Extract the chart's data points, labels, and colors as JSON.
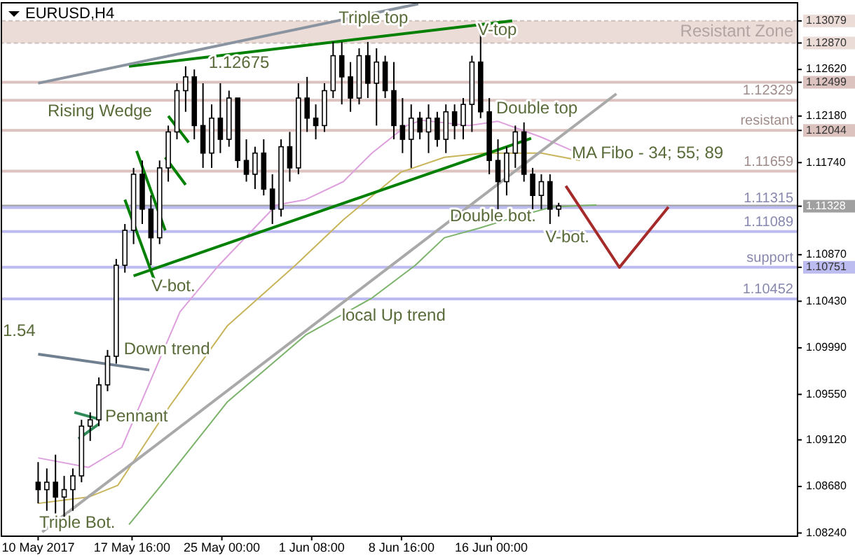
{
  "chart_data": {
    "type": "candlestick",
    "title": "EURUSD,H4",
    "x": [
      "2017-05-10T00:00",
      "2017-05-10T17:00",
      "2017-05-11T10:00",
      "2017-05-12T03:00",
      "2017-05-12T20:00",
      "2017-05-13T13:00",
      "2017-05-14T06:00",
      "2017-05-14T23:00",
      "2017-05-15T16:00",
      "2017-05-16T09:00",
      "2017-05-17T02:00",
      "2017-05-17T19:00",
      "2017-05-18T12:00",
      "2017-05-19T05:00",
      "2017-05-19T22:00",
      "2017-05-20T15:00",
      "2017-05-21T08:00",
      "2017-05-22T01:00",
      "2017-05-22T18:00",
      "2017-05-23T11:00",
      "2017-05-24T04:00",
      "2017-05-24T21:00",
      "2017-05-25T14:00",
      "2017-05-26T07:00",
      "2017-05-27T00:00",
      "2017-05-27T17:00",
      "2017-05-28T10:00",
      "2017-05-29T03:00",
      "2017-05-29T20:00",
      "2017-05-30T13:00",
      "2017-05-31T06:00",
      "2017-05-31T23:00",
      "2017-06-01T16:00",
      "2017-06-02T09:00",
      "2017-06-03T02:00",
      "2017-06-03T19:00",
      "2017-06-04T12:00",
      "2017-06-05T05:00",
      "2017-06-05T22:00",
      "2017-06-06T15:00",
      "2017-06-07T08:00",
      "2017-06-08T01:00",
      "2017-06-08T18:00",
      "2017-06-09T11:00",
      "2017-06-10T04:00",
      "2017-06-10T21:00",
      "2017-06-11T14:00",
      "2017-06-12T07:00",
      "2017-06-13T00:00",
      "2017-06-13T17:00",
      "2017-06-14T10:00",
      "2017-06-15T03:00",
      "2017-06-15T20:00",
      "2017-06-16T13:00",
      "2017-06-17T06:00",
      "2017-06-17T23:00",
      "2017-06-18T16:00",
      "2017-06-19T09:00",
      "2017-06-20T02:00",
      "2017-06-20T19:00",
      "2017-06-21T12:00"
    ],
    "ohlc": [
      [
        1.0872,
        1.0891,
        1.0852,
        1.0865
      ],
      [
        1.0865,
        1.0885,
        1.0845,
        1.0872
      ],
      [
        1.0872,
        1.0898,
        1.0839,
        1.0858
      ],
      [
        1.0858,
        1.0878,
        1.0836,
        1.0865
      ],
      [
        1.0865,
        1.0885,
        1.0845,
        1.0878
      ],
      [
        1.0878,
        1.0931,
        1.0872,
        1.0925
      ],
      [
        1.0925,
        1.0938,
        1.0911,
        1.0931
      ],
      [
        1.0931,
        1.0971,
        1.0925,
        1.0964
      ],
      [
        1.0964,
        1.0997,
        1.0958,
        1.0991
      ],
      [
        1.0991,
        1.1083,
        1.0984,
        1.1077
      ],
      [
        1.1077,
        1.1116,
        1.107,
        1.111
      ],
      [
        1.111,
        1.1169,
        1.1097,
        1.1163
      ],
      [
        1.1163,
        1.1176,
        1.1116,
        1.113
      ],
      [
        1.113,
        1.1143,
        1.1077,
        1.1103
      ],
      [
        1.1103,
        1.1176,
        1.1097,
        1.1169
      ],
      [
        1.1169,
        1.1209,
        1.1156,
        1.1203
      ],
      [
        1.1203,
        1.1249,
        1.1196,
        1.1242
      ],
      [
        1.1242,
        1.1265,
        1.1222,
        1.1255
      ],
      [
        1.1255,
        1.1262,
        1.1196,
        1.1209
      ],
      [
        1.1209,
        1.1249,
        1.1169,
        1.1183
      ],
      [
        1.1183,
        1.1229,
        1.1169,
        1.1216
      ],
      [
        1.1216,
        1.1249,
        1.1183,
        1.1196
      ],
      [
        1.1196,
        1.1242,
        1.1189,
        1.1235
      ],
      [
        1.1235,
        1.1235,
        1.1169,
        1.1176
      ],
      [
        1.1176,
        1.1196,
        1.1156,
        1.1163
      ],
      [
        1.1163,
        1.1189,
        1.1149,
        1.1183
      ],
      [
        1.1183,
        1.1196,
        1.1143,
        1.1149
      ],
      [
        1.1149,
        1.1163,
        1.1116,
        1.113
      ],
      [
        1.113,
        1.1196,
        1.1123,
        1.1189
      ],
      [
        1.1189,
        1.1203,
        1.1156,
        1.1169
      ],
      [
        1.1169,
        1.1249,
        1.1163,
        1.1235
      ],
      [
        1.1235,
        1.1255,
        1.1203,
        1.1216
      ],
      [
        1.1216,
        1.1229,
        1.1196,
        1.1209
      ],
      [
        1.1209,
        1.1249,
        1.1203,
        1.1242
      ],
      [
        1.1242,
        1.1288,
        1.1235,
        1.1275
      ],
      [
        1.1275,
        1.1288,
        1.1229,
        1.1255
      ],
      [
        1.1255,
        1.1269,
        1.1222,
        1.1235
      ],
      [
        1.1235,
        1.1282,
        1.1229,
        1.1275
      ],
      [
        1.1275,
        1.1288,
        1.1235,
        1.1249
      ],
      [
        1.1249,
        1.1282,
        1.1209,
        1.1269
      ],
      [
        1.1269,
        1.1275,
        1.1235,
        1.1242
      ],
      [
        1.1242,
        1.1269,
        1.1196,
        1.1209
      ],
      [
        1.1209,
        1.1235,
        1.1183,
        1.1196
      ],
      [
        1.1196,
        1.1229,
        1.1169,
        1.1216
      ],
      [
        1.1216,
        1.1222,
        1.1196,
        1.1203
      ],
      [
        1.1203,
        1.1229,
        1.1183,
        1.1216
      ],
      [
        1.1216,
        1.1222,
        1.1189,
        1.1196
      ],
      [
        1.1196,
        1.1229,
        1.1183,
        1.1222
      ],
      [
        1.1222,
        1.1229,
        1.1196,
        1.1209
      ],
      [
        1.1209,
        1.1235,
        1.1196,
        1.1229
      ],
      [
        1.1229,
        1.1275,
        1.1203,
        1.1269
      ],
      [
        1.1269,
        1.1299,
        1.1216,
        1.1222
      ],
      [
        1.1222,
        1.1235,
        1.1163,
        1.1176
      ],
      [
        1.1176,
        1.1196,
        1.113,
        1.1156
      ],
      [
        1.1156,
        1.1189,
        1.1143,
        1.1183
      ],
      [
        1.1183,
        1.1209,
        1.1169,
        1.1203
      ],
      [
        1.1203,
        1.1212,
        1.1156,
        1.1163
      ],
      [
        1.1163,
        1.1169,
        1.113,
        1.1143
      ],
      [
        1.1143,
        1.1163,
        1.113,
        1.1156
      ],
      [
        1.1156,
        1.1163,
        1.1116,
        1.113
      ],
      [
        1.113,
        1.1136,
        1.1123,
        1.1133
      ]
    ],
    "series": [
      {
        "type": "line",
        "color": "#dda0dd",
        "x": [
          "2017-05-10T00:00",
          "2017-05-14T03:00",
          "2017-05-16T20:00",
          "2017-05-21T14:00",
          "2017-05-24T18:00",
          "2017-05-29T11:00",
          "2017-05-31T20:00",
          "2017-06-03T22:00",
          "2017-06-06T06:00",
          "2017-06-09T02:00",
          "2017-06-10T07:00",
          "2017-06-14T04:00",
          "2017-06-16T13:00",
          "2017-06-20T02:00",
          "2017-06-22T16:00"
        ],
        "values": [
          1.0895,
          1.0886,
          1.0905,
          1.1033,
          1.1077,
          1.1134,
          1.1139,
          1.1156,
          1.1183,
          1.1209,
          1.1214,
          1.1209,
          1.1213,
          1.1198,
          1.1185
        ]
      },
      {
        "type": "line",
        "color": "#c8b45a",
        "x": [
          "2017-05-10T00:00",
          "2017-05-14T03:00",
          "2017-05-16T12:00",
          "2017-05-20T18:00",
          "2017-05-25T11:00",
          "2017-05-31T00:00",
          "2017-06-03T22:00",
          "2017-06-08T15:00",
          "2017-06-12T04:00",
          "2017-06-15T09:00",
          "2017-06-20T02:00",
          "2017-06-23T06:00"
        ],
        "values": [
          1.0852,
          1.0858,
          1.0869,
          1.0944,
          1.102,
          1.1077,
          1.112,
          1.1165,
          1.1179,
          1.1183,
          1.1183,
          1.1176
        ]
      },
      {
        "type": "line",
        "color": "#7cb36b",
        "x": [
          "2017-05-17T10:00",
          "2017-05-20T01:00",
          "2017-05-25T11:00",
          "2017-05-31T20:00",
          "2017-06-06T06:00",
          "2017-06-09T19:00",
          "2017-06-12T04:00",
          "2017-06-15T00:00",
          "2017-06-18T02:00",
          "2017-06-20T22:00",
          "2017-06-24T14:00"
        ],
        "values": [
          1.0832,
          1.0869,
          1.0948,
          1.1011,
          1.1046,
          1.1077,
          1.1103,
          1.1112,
          1.1123,
          1.1132,
          1.1134
        ]
      },
      {
        "type": "line",
        "color": "#008000",
        "x": [
          "2017-05-17T10:00",
          "2017-06-17T17:00"
        ],
        "values": [
          1.1265,
          1.1308
        ]
      },
      {
        "type": "line",
        "color": "#008000",
        "x": [
          "2017-05-17T19:00",
          "2017-06-19T06:00"
        ],
        "values": [
          1.1067,
          1.1197
        ]
      },
      {
        "type": "line",
        "color": "#8a94a0",
        "x": [
          "2017-05-10T00:00",
          "2017-06-10T01:00"
        ],
        "values": [
          1.1249,
          1.1324
        ]
      },
      {
        "type": "line",
        "color": "#a9a9a9",
        "x": [
          "2017-05-10T08:00",
          "2017-06-26T05:00"
        ],
        "values": [
          1.0825,
          1.1239
        ]
      },
      {
        "type": "line",
        "color": "#708090",
        "x": [
          "2017-05-10T00:00",
          "2017-05-19T02:00"
        ],
        "values": [
          1.0993,
          1.0978
        ]
      },
      {
        "type": "line",
        "color": "#a52a2a",
        "x": [
          "2017-06-22T02:00",
          "2017-06-26T11:00",
          "2017-06-30T11:00"
        ],
        "values": [
          1.1152,
          1.1075,
          1.1132
        ]
      },
      {
        "type": "line",
        "color": "#008000",
        "x": [
          "2017-05-18T01:00",
          "2017-05-20T09:00"
        ],
        "values": [
          1.1185,
          1.111
        ]
      },
      {
        "type": "line",
        "color": "#008000",
        "x": [
          "2017-05-17T02:00",
          "2017-05-19T11:00"
        ],
        "values": [
          1.1139,
          1.1064
        ]
      },
      {
        "type": "line",
        "color": "#008000",
        "x": [
          "2017-05-20T15:00",
          "2017-05-22T07:00"
        ],
        "values": [
          1.1218,
          1.1193
        ]
      },
      {
        "type": "line",
        "color": "#008000",
        "x": [
          "2017-05-20T09:00",
          "2017-05-22T01:00"
        ],
        "values": [
          1.1179,
          1.1153
        ]
      },
      {
        "type": "line",
        "color": "#2e8b57",
        "x": [
          "2017-05-12T23:00",
          "2017-05-14T20:00"
        ],
        "values": [
          1.0938,
          1.0932
        ]
      },
      {
        "type": "line",
        "color": "#2e8b57",
        "x": [
          "2017-05-13T07:00",
          "2017-05-14T23:00"
        ],
        "values": [
          1.0913,
          1.0927
        ]
      }
    ],
    "xlim": [
      "2017-05-07T00:00",
      "2017-07-11T00:00"
    ],
    "ylim": [
      1.0821,
      1.1325
    ],
    "xticks": [
      {
        "value": "2017-05-10T00:00",
        "label": "10 May 2017"
      },
      {
        "value": "2017-05-17T16:00",
        "label": "17 May 16:00"
      },
      {
        "value": "2017-05-25T00:00",
        "label": "25 May 00:00"
      },
      {
        "value": "2017-06-01T08:00",
        "label": "1 Jun 08:00"
      },
      {
        "value": "2017-06-08T16:00",
        "label": "8 Jun 16:00"
      },
      {
        "value": "2017-06-16T00:00",
        "label": "16 Jun 00:00"
      }
    ],
    "yticks": [
      {
        "value": 1.0824,
        "label": "1.08240"
      },
      {
        "value": 1.0868,
        "label": "1.08680"
      },
      {
        "value": 1.0912,
        "label": "1.09120"
      },
      {
        "value": 1.0955,
        "label": "1.09550"
      },
      {
        "value": 1.0999,
        "label": "1.09990"
      },
      {
        "value": 1.1043,
        "label": "1.10430"
      },
      1.10751,
      {
        "value": 1.1087,
        "label": "1.10870"
      },
      1.11328,
      {
        "value": 1.1174,
        "label": "1.11740"
      },
      1.12044,
      {
        "value": 1.1218,
        "label": "1.12180"
      },
      1.12499,
      {
        "value": 1.1262,
        "label": "1.12620"
      },
      {
        "value": 1.1287,
        "label": "1.12870"
      },
      1.13079
    ],
    "bands": [
      {
        "axis": "y",
        "from": 1.1287,
        "to": 1.13079,
        "label": "Resistant Zone",
        "color": "#ecdcd8"
      }
    ],
    "ref_lines": [
      {
        "axis": "y",
        "value": 1.12499,
        "label": null,
        "color": "#dcc3bf"
      },
      {
        "axis": "y",
        "value": 1.12329,
        "label": "1.12329",
        "color": "#dcc3bf"
      },
      {
        "axis": "y",
        "value": 1.12044,
        "label": "resistant",
        "color": "#dcc3bf"
      },
      {
        "axis": "y",
        "value": 1.11659,
        "label": "1.11659",
        "color": "#dcc3bf"
      },
      {
        "axis": "y",
        "value": 1.11328,
        "label": null,
        "color": "#a0a0a0"
      },
      {
        "axis": "y",
        "value": 1.11315,
        "label": "1.11315",
        "color": "#bcbcf0"
      },
      {
        "axis": "y",
        "value": 1.11089,
        "label": "1.11089",
        "color": "#bcbcf0"
      },
      {
        "axis": "y",
        "value": 1.10751,
        "label": "support",
        "color": "#bcbcf0"
      },
      {
        "axis": "y",
        "value": 1.10452,
        "label": "1.10452",
        "color": "#bcbcf0"
      }
    ],
    "annotations": [
      {
        "text": "Triple top",
        "x": "2017-06-03T13:00",
        "y": 1.131
      },
      {
        "text": "V-top",
        "x": "2017-06-14T21:00",
        "y": 1.1299
      },
      {
        "text": "1.12675",
        "x": "2017-05-23T22:00",
        "y": 1.12675
      },
      "Rising Wedge",
      "Double top",
      "MA Fibo - 34; 55; 89",
      {
        "text": "Double bot.",
        "x": "2017-06-12T15:00",
        "y": 1.1123
      },
      {
        "text": "V-bot.",
        "x": "2017-06-20T10:00",
        "y": 1.1103
      },
      "V-bot.",
      "1.54",
      {
        "text": "Down trend",
        "x": "2017-05-17T00:00",
        "y": 1.0997
      },
      {
        "text": "local Up trend",
        "x": "2017-06-03T19:00",
        "y": 1.1029
      },
      "Pennant",
      "Triple Bot."
    ]
  }
}
